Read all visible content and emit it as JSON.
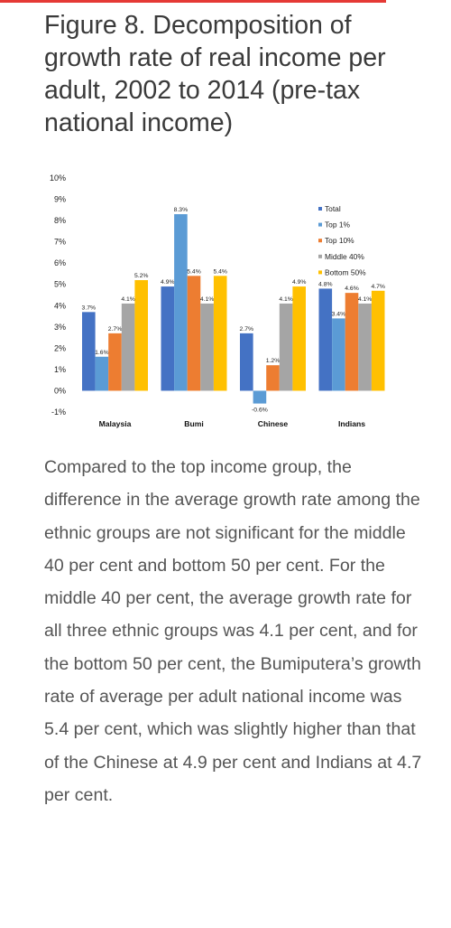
{
  "article": {
    "title": "Figure 8. Decomposition of growth rate of real income per adult, 2002 to 2014 (pre-tax national income)",
    "body": "Compared to the top income group, the difference in the average growth rate among the ethnic groups are not significant for the middle 40 per cent and bottom 50 per cent. For the middle 40 per cent, the average growth rate for all three ethnic groups was 4.1 per cent, and for the bottom 50 per cent, the Bumiputera’s growth rate of average per adult national income was 5.4 per cent, which was slightly higher than that of the Chinese at 4.9 per cent and Indians at 4.7 per cent."
  },
  "colors": {
    "accent": "#e53935"
  },
  "chart_data": {
    "type": "bar",
    "categories": [
      "Malaysia",
      "Bumi",
      "Chinese",
      "Indians"
    ],
    "series": [
      {
        "name": "Total",
        "color": "#4472c4",
        "values": [
          3.7,
          4.9,
          2.7,
          4.8
        ]
      },
      {
        "name": "Top 1%",
        "color": "#5b9bd5",
        "values": [
          1.6,
          8.3,
          -0.6,
          3.4
        ]
      },
      {
        "name": "Top 10%",
        "color": "#ed7d31",
        "values": [
          2.7,
          5.4,
          1.2,
          4.6
        ]
      },
      {
        "name": "Middle 40%",
        "color": "#a5a5a5",
        "values": [
          4.1,
          4.1,
          4.1,
          4.1
        ]
      },
      {
        "name": "Bottom 50%",
        "color": "#ffc000",
        "values": [
          5.2,
          5.4,
          4.9,
          4.7
        ]
      }
    ],
    "data_labels": [
      [
        "3.7%",
        "1.6%",
        "2.7%",
        "4.1%",
        "5.2%"
      ],
      [
        "4.9%",
        "8.3%",
        "5.4%",
        "4.1%",
        "5.4%"
      ],
      [
        "2.7%",
        "-0.6%",
        "1.2%",
        "4.1%",
        "4.9%"
      ],
      [
        "4.8%",
        "3.4%",
        "4.6%",
        "4.1%",
        "4.7%"
      ]
    ],
    "y_ticks": [
      "-1%",
      "0%",
      "1%",
      "2%",
      "3%",
      "4%",
      "5%",
      "6%",
      "7%",
      "8%",
      "9%",
      "10%"
    ],
    "ylim": [
      -1,
      10
    ],
    "grid": false,
    "legend_position": "right"
  }
}
